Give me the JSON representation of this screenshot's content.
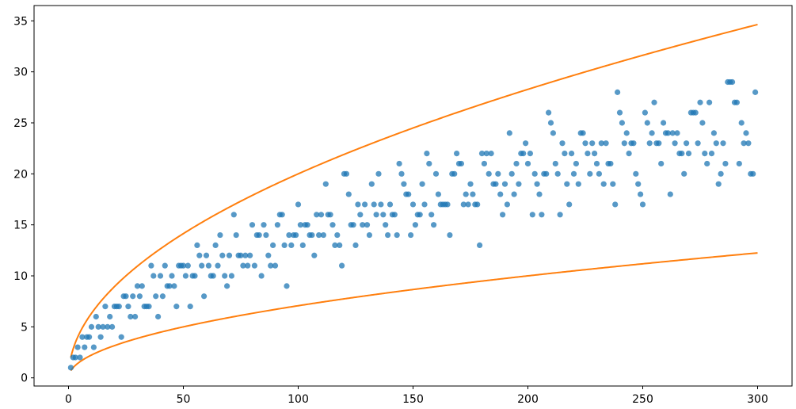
{
  "chart_data": {
    "type": "scatter",
    "title": "",
    "xlabel": "",
    "ylabel": "",
    "xlim": [
      -15,
      315
    ],
    "ylim": [
      -0.8,
      36.5
    ],
    "x_ticks": [
      0,
      50,
      100,
      150,
      200,
      250,
      300
    ],
    "y_ticks": [
      0,
      5,
      10,
      15,
      20,
      25,
      30,
      35
    ],
    "grid": false,
    "legend": "none",
    "colors": {
      "points": "#1f77b4",
      "curves": "#ff7f0e"
    },
    "series": [
      {
        "kind": "scatter",
        "points": [
          [
            1,
            1
          ],
          [
            2,
            2
          ],
          [
            3,
            2
          ],
          [
            4,
            3
          ],
          [
            5,
            2
          ],
          [
            6,
            4
          ],
          [
            7,
            3
          ],
          [
            8,
            4
          ],
          [
            9,
            4
          ],
          [
            10,
            5
          ],
          [
            11,
            3
          ],
          [
            12,
            6
          ],
          [
            13,
            5
          ],
          [
            14,
            4
          ],
          [
            15,
            5
          ],
          [
            16,
            7
          ],
          [
            17,
            5
          ],
          [
            18,
            6
          ],
          [
            19,
            5
          ],
          [
            20,
            7
          ],
          [
            21,
            7
          ],
          [
            22,
            7
          ],
          [
            23,
            4
          ],
          [
            24,
            8
          ],
          [
            25,
            8
          ],
          [
            26,
            7
          ],
          [
            27,
            6
          ],
          [
            28,
            8
          ],
          [
            29,
            6
          ],
          [
            30,
            9
          ],
          [
            31,
            8
          ],
          [
            32,
            9
          ],
          [
            33,
            7
          ],
          [
            34,
            7
          ],
          [
            35,
            7
          ],
          [
            36,
            11
          ],
          [
            37,
            10
          ],
          [
            38,
            8
          ],
          [
            39,
            6
          ],
          [
            40,
            10
          ],
          [
            41,
            8
          ],
          [
            42,
            11
          ],
          [
            43,
            9
          ],
          [
            44,
            9
          ],
          [
            45,
            10
          ],
          [
            46,
            9
          ],
          [
            47,
            7
          ],
          [
            48,
            11
          ],
          [
            49,
            11
          ],
          [
            50,
            11
          ],
          [
            51,
            10
          ],
          [
            52,
            11
          ],
          [
            53,
            7
          ],
          [
            54,
            10
          ],
          [
            55,
            10
          ],
          [
            56,
            13
          ],
          [
            57,
            12
          ],
          [
            58,
            11
          ],
          [
            59,
            8
          ],
          [
            60,
            12
          ],
          [
            61,
            11
          ],
          [
            62,
            10
          ],
          [
            63,
            10
          ],
          [
            64,
            13
          ],
          [
            65,
            11
          ],
          [
            66,
            14
          ],
          [
            67,
            12
          ],
          [
            68,
            10
          ],
          [
            69,
            9
          ],
          [
            70,
            12
          ],
          [
            71,
            10
          ],
          [
            72,
            16
          ],
          [
            73,
            14
          ],
          [
            74,
            12
          ],
          [
            75,
            12
          ],
          [
            76,
            11
          ],
          [
            77,
            12
          ],
          [
            78,
            11
          ],
          [
            79,
            12
          ],
          [
            80,
            15
          ],
          [
            81,
            11
          ],
          [
            82,
            14
          ],
          [
            83,
            14
          ],
          [
            84,
            10
          ],
          [
            85,
            15
          ],
          [
            86,
            14
          ],
          [
            87,
            12
          ],
          [
            88,
            11
          ],
          [
            89,
            13
          ],
          [
            90,
            11
          ],
          [
            91,
            15
          ],
          [
            92,
            16
          ],
          [
            93,
            16
          ],
          [
            94,
            13
          ],
          [
            95,
            9
          ],
          [
            96,
            14
          ],
          [
            97,
            13
          ],
          [
            98,
            14
          ],
          [
            99,
            14
          ],
          [
            100,
            17
          ],
          [
            101,
            15
          ],
          [
            102,
            13
          ],
          [
            103,
            15
          ],
          [
            104,
            15
          ],
          [
            105,
            14
          ],
          [
            106,
            14
          ],
          [
            107,
            12
          ],
          [
            108,
            16
          ],
          [
            109,
            14
          ],
          [
            110,
            16
          ],
          [
            111,
            14
          ],
          [
            112,
            19
          ],
          [
            113,
            16
          ],
          [
            114,
            16
          ],
          [
            115,
            15
          ],
          [
            116,
            13
          ],
          [
            117,
            14
          ],
          [
            118,
            13
          ],
          [
            119,
            11
          ],
          [
            120,
            20
          ],
          [
            121,
            20
          ],
          [
            122,
            18
          ],
          [
            123,
            15
          ],
          [
            124,
            15
          ],
          [
            125,
            13
          ],
          [
            126,
            17
          ],
          [
            127,
            16
          ],
          [
            128,
            15
          ],
          [
            129,
            17
          ],
          [
            130,
            15
          ],
          [
            131,
            14
          ],
          [
            132,
            19
          ],
          [
            133,
            17
          ],
          [
            134,
            16
          ],
          [
            135,
            20
          ],
          [
            136,
            17
          ],
          [
            137,
            16
          ],
          [
            138,
            15
          ],
          [
            139,
            14
          ],
          [
            140,
            17
          ],
          [
            141,
            16
          ],
          [
            142,
            16
          ],
          [
            143,
            14
          ],
          [
            144,
            21
          ],
          [
            145,
            20
          ],
          [
            146,
            19
          ],
          [
            147,
            18
          ],
          [
            148,
            18
          ],
          [
            149,
            14
          ],
          [
            150,
            17
          ],
          [
            151,
            15
          ],
          [
            152,
            16
          ],
          [
            153,
            16
          ],
          [
            154,
            19
          ],
          [
            155,
            17
          ],
          [
            156,
            22
          ],
          [
            157,
            21
          ],
          [
            158,
            16
          ],
          [
            159,
            15
          ],
          [
            160,
            20
          ],
          [
            161,
            18
          ],
          [
            162,
            17
          ],
          [
            163,
            17
          ],
          [
            164,
            17
          ],
          [
            165,
            17
          ],
          [
            166,
            14
          ],
          [
            167,
            20
          ],
          [
            168,
            20
          ],
          [
            169,
            22
          ],
          [
            170,
            21
          ],
          [
            171,
            21
          ],
          [
            172,
            17
          ],
          [
            173,
            18
          ],
          [
            174,
            17
          ],
          [
            175,
            19
          ],
          [
            176,
            18
          ],
          [
            177,
            17
          ],
          [
            178,
            17
          ],
          [
            179,
            13
          ],
          [
            180,
            22
          ],
          [
            181,
            21
          ],
          [
            182,
            22
          ],
          [
            183,
            20
          ],
          [
            184,
            22
          ],
          [
            185,
            19
          ],
          [
            186,
            19
          ],
          [
            187,
            20
          ],
          [
            188,
            18
          ],
          [
            189,
            16
          ],
          [
            190,
            19
          ],
          [
            191,
            17
          ],
          [
            192,
            24
          ],
          [
            193,
            20
          ],
          [
            194,
            18
          ],
          [
            195,
            21
          ],
          [
            196,
            19
          ],
          [
            197,
            22
          ],
          [
            198,
            22
          ],
          [
            199,
            23
          ],
          [
            200,
            21
          ],
          [
            201,
            22
          ],
          [
            202,
            16
          ],
          [
            203,
            20
          ],
          [
            204,
            19
          ],
          [
            205,
            18
          ],
          [
            206,
            16
          ],
          [
            207,
            20
          ],
          [
            208,
            20
          ],
          [
            209,
            26
          ],
          [
            210,
            25
          ],
          [
            211,
            24
          ],
          [
            212,
            21
          ],
          [
            213,
            20
          ],
          [
            214,
            16
          ],
          [
            215,
            23
          ],
          [
            216,
            22
          ],
          [
            217,
            19
          ],
          [
            218,
            17
          ],
          [
            219,
            22
          ],
          [
            220,
            20
          ],
          [
            221,
            21
          ],
          [
            222,
            19
          ],
          [
            223,
            24
          ],
          [
            224,
            24
          ],
          [
            225,
            23
          ],
          [
            226,
            22
          ],
          [
            227,
            20
          ],
          [
            228,
            23
          ],
          [
            229,
            22
          ],
          [
            230,
            21
          ],
          [
            231,
            20
          ],
          [
            232,
            23
          ],
          [
            233,
            19
          ],
          [
            234,
            23
          ],
          [
            235,
            21
          ],
          [
            236,
            21
          ],
          [
            237,
            19
          ],
          [
            238,
            17
          ],
          [
            239,
            28
          ],
          [
            240,
            26
          ],
          [
            241,
            25
          ],
          [
            242,
            23
          ],
          [
            243,
            24
          ],
          [
            244,
            22
          ],
          [
            245,
            23
          ],
          [
            246,
            23
          ],
          [
            247,
            20
          ],
          [
            248,
            19
          ],
          [
            249,
            18
          ],
          [
            250,
            17
          ],
          [
            251,
            26
          ],
          [
            252,
            25
          ],
          [
            253,
            23
          ],
          [
            254,
            24
          ],
          [
            255,
            27
          ],
          [
            256,
            23
          ],
          [
            257,
            23
          ],
          [
            258,
            21
          ],
          [
            259,
            25
          ],
          [
            260,
            24
          ],
          [
            261,
            24
          ],
          [
            262,
            18
          ],
          [
            263,
            24
          ],
          [
            264,
            23
          ],
          [
            265,
            24
          ],
          [
            266,
            22
          ],
          [
            267,
            22
          ],
          [
            268,
            20
          ],
          [
            269,
            23
          ],
          [
            270,
            22
          ],
          [
            271,
            26
          ],
          [
            272,
            26
          ],
          [
            273,
            26
          ],
          [
            274,
            23
          ],
          [
            275,
            27
          ],
          [
            276,
            25
          ],
          [
            277,
            22
          ],
          [
            278,
            21
          ],
          [
            279,
            27
          ],
          [
            280,
            22
          ],
          [
            281,
            24
          ],
          [
            282,
            23
          ],
          [
            283,
            19
          ],
          [
            284,
            20
          ],
          [
            285,
            23
          ],
          [
            286,
            21
          ],
          [
            287,
            29
          ],
          [
            288,
            29
          ],
          [
            289,
            29
          ],
          [
            290,
            27
          ],
          [
            291,
            27
          ],
          [
            292,
            21
          ],
          [
            293,
            25
          ],
          [
            294,
            23
          ],
          [
            295,
            24
          ],
          [
            296,
            23
          ],
          [
            297,
            20
          ],
          [
            298,
            20
          ],
          [
            299,
            28
          ]
        ]
      },
      {
        "kind": "line",
        "function": "2*sqrt(x)",
        "x_range": [
          1,
          300
        ]
      },
      {
        "kind": "line",
        "function": "sqrt(x/2)",
        "x_range": [
          1,
          300
        ]
      }
    ]
  }
}
